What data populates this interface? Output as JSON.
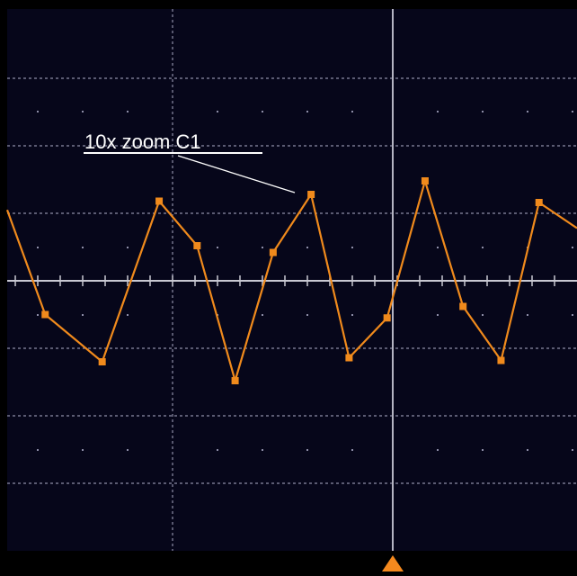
{
  "colors": {
    "background": "#06061a",
    "frame": "#000000",
    "grid": "#8e8ea8",
    "center_axis": "#c8c8d2",
    "cursor": "#b4b4c2",
    "trace": "#f08a1c",
    "label": "#ffffff",
    "trigger_marker": "#f5891e"
  },
  "waveform": {
    "label": "10x zoom C1",
    "points": [
      [
        0.0,
        1.05
      ],
      [
        0.5,
        -0.5
      ],
      [
        1.25,
        -1.2
      ],
      [
        2.0,
        1.18
      ],
      [
        2.5,
        0.52
      ],
      [
        3.0,
        -1.48
      ],
      [
        3.5,
        0.42
      ],
      [
        4.0,
        1.28
      ],
      [
        4.5,
        -1.14
      ],
      [
        5.0,
        -0.55
      ],
      [
        5.5,
        1.48
      ],
      [
        6.0,
        -0.38
      ],
      [
        6.5,
        -1.18
      ],
      [
        7.0,
        1.16
      ],
      [
        7.5,
        0.78
      ]
    ]
  },
  "markers": {
    "trigger": "trigger-position-marker"
  }
}
